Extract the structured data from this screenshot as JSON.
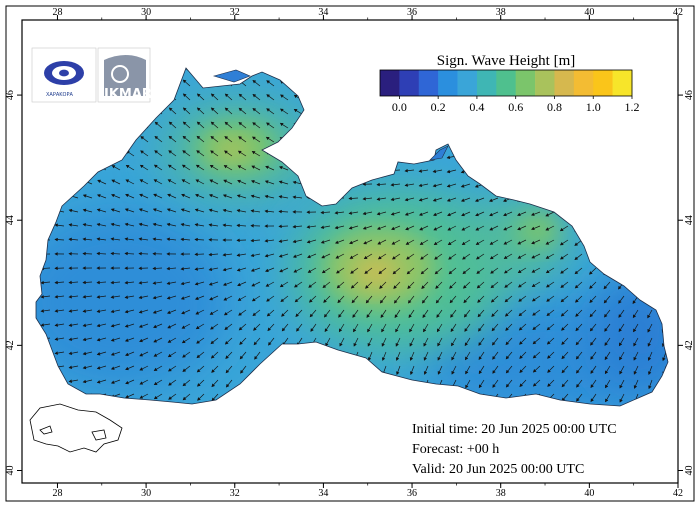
{
  "legend": {
    "title": "Sign. Wave Height [m]",
    "colors": [
      "#2a1f7e",
      "#2e3fb5",
      "#2f66d6",
      "#2b8fde",
      "#3aa5d8",
      "#3fb6b4",
      "#4fc08e",
      "#7bc56b",
      "#a9c25c",
      "#d6b84e",
      "#f3bc33",
      "#fac51a",
      "#f7e52a"
    ],
    "tick_labels": [
      "0.0",
      "0.2",
      "0.4",
      "0.6",
      "0.8",
      "1.0",
      "1.2"
    ]
  },
  "axes": {
    "x_ticks": [
      "28",
      "30",
      "32",
      "34",
      "36",
      "38",
      "40",
      "42"
    ],
    "y_ticks": [
      "46",
      "44",
      "42",
      "40"
    ],
    "x_range": [
      27.2,
      42
    ],
    "y_range": [
      39.8,
      47.2
    ]
  },
  "info": {
    "initial_time": "Initial time: 20 Jun 2025 00:00 UTC",
    "forecast": "Forecast: +00 h",
    "valid": "Valid: 20 Jun 2025 00:00 UTC"
  },
  "logos": {
    "left_text": "ΧΑΡΑΚΟΡΑ",
    "right_text": "IKMAR"
  },
  "map_data": {
    "variable": "Significant wave height",
    "unit": "m",
    "hotspots": [
      {
        "lon": 31.8,
        "lat": 45.4,
        "value": 0.9
      },
      {
        "lon": 35.2,
        "lat": 43.3,
        "value": 0.9
      },
      {
        "lon": 38.6,
        "lat": 44.0,
        "value": 0.7
      }
    ]
  }
}
